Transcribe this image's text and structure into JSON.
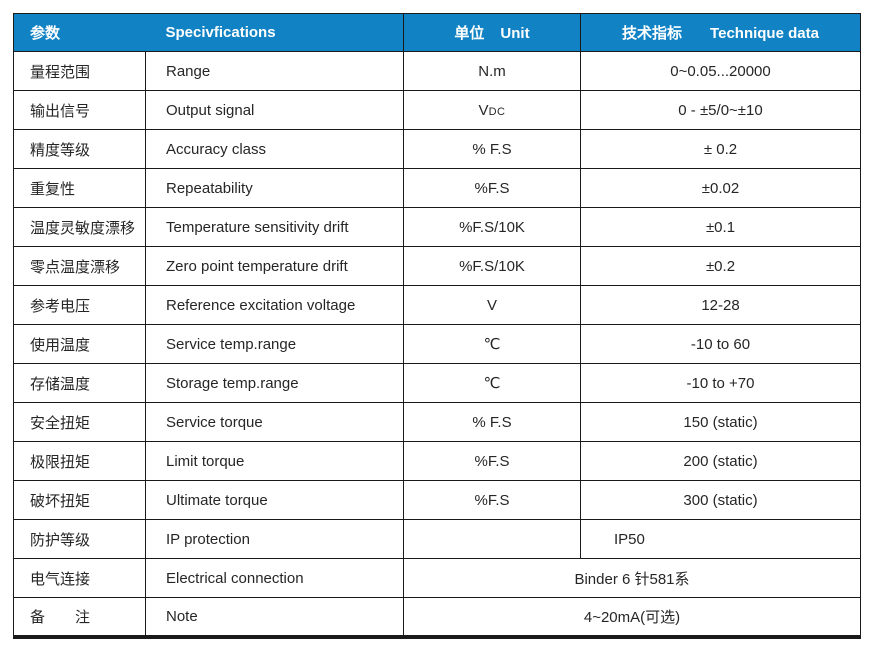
{
  "table": {
    "header": {
      "param_zh": "参数",
      "spec_en": "Specivfications",
      "unit_zh": "单位",
      "unit_en": "Unit",
      "data_zh": "技术指标",
      "data_en": "Technique data"
    },
    "rows": [
      {
        "param": "量程范围",
        "spec": "Range",
        "unit": "N.m",
        "value": "0~0.05...20000"
      },
      {
        "param": "输出信号",
        "spec": "Output signal",
        "unit": "V",
        "unit_sub": "DC",
        "value": "0 - ±5/0~±10"
      },
      {
        "param": "精度等级",
        "spec": "Accuracy class",
        "unit": "% F.S",
        "value": "± 0.2"
      },
      {
        "param": "重复性",
        "spec": "Repeatability",
        "unit": "%F.S",
        "value": "±0.02"
      },
      {
        "param": "温度灵敏度漂移",
        "spec": "Temperature sensitivity drift",
        "unit": "%F.S/10K",
        "value": "±0.1"
      },
      {
        "param": "零点温度漂移",
        "spec": "Zero point temperature drift",
        "unit": "%F.S/10K",
        "value": "±0.2"
      },
      {
        "param": "参考电压",
        "spec": "Reference excitation voltage",
        "unit": "V",
        "value": "12-28"
      },
      {
        "param": "使用温度",
        "spec": "Service temp.range",
        "unit": "℃",
        "value": "-10 to 60"
      },
      {
        "param": "存储温度",
        "spec": "Storage temp.range",
        "unit": "℃",
        "value": "-10 to +70"
      },
      {
        "param": "安全扭矩",
        "spec": "Service torque",
        "unit": "% F.S",
        "value": "150 (static)"
      },
      {
        "param": "极限扭矩",
        "spec": "Limit torque",
        "unit": "%F.S",
        "value": "200 (static)"
      },
      {
        "param": "破坏扭矩",
        "spec": "Ultimate torque",
        "unit": "%F.S",
        "value": "300 (static)"
      },
      {
        "param": "防护等级",
        "spec": "IP protection",
        "unit": "",
        "value": "IP50",
        "value_left": true
      },
      {
        "param": "电气连接",
        "spec": "Electrical connection",
        "value": "Binder 6 针581系",
        "merged": true
      },
      {
        "param": "备　　注",
        "spec": "Note",
        "value": "4~20mA(可选)",
        "merged": true
      }
    ],
    "colors": {
      "header_bg": "#1183c4",
      "header_text": "#ffffff",
      "body_text": "#262626",
      "border": "#1a1a1a"
    }
  }
}
